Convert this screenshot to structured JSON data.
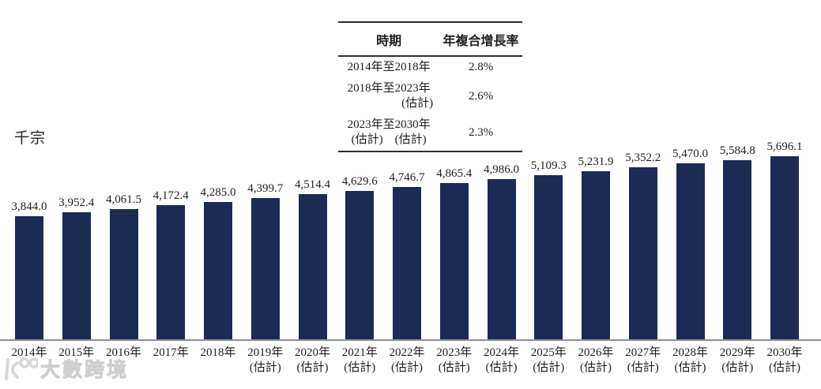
{
  "unit_label": "千宗",
  "watermark": {
    "text": "大數跨境"
  },
  "cagr_table": {
    "headers": {
      "period": "時期",
      "cagr": "年複合增長率"
    },
    "rows": [
      {
        "period_line1": "2014年至2018年",
        "period_line2": "",
        "cagr": "2.8%"
      },
      {
        "period_line1": "2018年至2023年",
        "period_line2": "(估計)",
        "cagr": "2.6%"
      },
      {
        "period_line1": "2023年至2030年",
        "period_line2": "(估計)　(估計)",
        "cagr": "2.3%"
      }
    ]
  },
  "chart_data": {
    "type": "bar",
    "title": "",
    "ylabel": "千宗",
    "xlabel": "",
    "bar_color": "#1c2b54",
    "baseline_color": "#8f8f8f",
    "ylim": [
      0,
      5696.1
    ],
    "grid": false,
    "legend": false,
    "categories": [
      "2014年",
      "2015年",
      "2016年",
      "2017年",
      "2018年",
      "2019年",
      "2020年",
      "2021年",
      "2022年",
      "2023年",
      "2024年",
      "2025年",
      "2026年",
      "2027年",
      "2028年",
      "2029年",
      "2030年"
    ],
    "category_notes": [
      "",
      "",
      "",
      "",
      "",
      "(估計)",
      "(估計)",
      "(估計)",
      "(估計)",
      "(估計)",
      "(估計)",
      "(估計)",
      "(估計)",
      "(估計)",
      "(估計)",
      "(估計)",
      "(估計)"
    ],
    "values": [
      3844.0,
      3952.4,
      4061.5,
      4172.4,
      4285.0,
      4399.7,
      4514.4,
      4629.6,
      4746.7,
      4865.4,
      4986.0,
      5109.3,
      5231.9,
      5352.2,
      5470.0,
      5584.8,
      5696.1
    ],
    "value_labels": [
      "3,844.0",
      "3,952.4",
      "4,061.5",
      "4,172.4",
      "4,285.0",
      "4,399.7",
      "4,514.4",
      "4,629.6",
      "4,746.7",
      "4,865.4",
      "4,986.0",
      "5,109.3",
      "5,231.9",
      "5,352.2",
      "5,470.0",
      "5,584.8",
      "5,696.1"
    ]
  }
}
